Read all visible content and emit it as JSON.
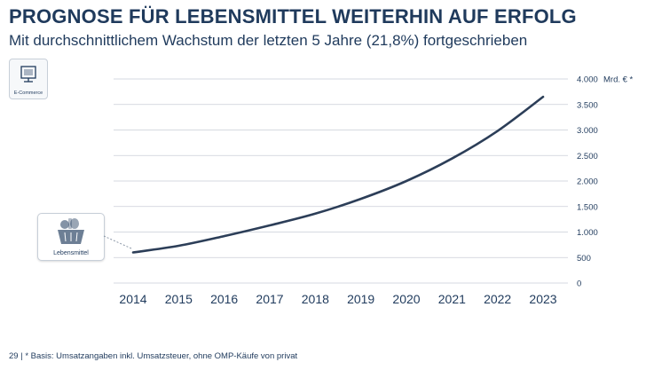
{
  "header": {
    "title": "PROGNOSE FÜR LEBENSMITTEL WEITERHIN AUF ERFOLG",
    "subtitle": "Mit durchschnittlichem Wachstum der letzten 5 Jahre (21,8%) fortgeschrieben"
  },
  "badges": {
    "ecommerce_label": "E-Commerce",
    "lebensmittel_label": "Lebensmittel"
  },
  "footer": {
    "page_number": "29",
    "separator": "|",
    "note": "* Basis: Umsatzangaben inkl. Umsatzsteuer, ohne OMP-Käufe von privat"
  },
  "colors": {
    "line": "#2c3e58",
    "grid": "#c9ced6",
    "text": "#1f3a5c"
  },
  "chart_data": {
    "type": "line",
    "title": "",
    "xlabel": "",
    "ylabel": "Mrd. € *",
    "categories": [
      "2014",
      "2015",
      "2016",
      "2017",
      "2018",
      "2019",
      "2020",
      "2021",
      "2022",
      "2023"
    ],
    "series": [
      {
        "name": "Lebensmittel",
        "values": [
          600,
          730,
          920,
          1130,
          1360,
          1650,
          2000,
          2440,
          2980,
          3650
        ]
      }
    ],
    "y_ticks": [
      0,
      500,
      1000,
      1500,
      2000,
      2500,
      3000,
      3500,
      4000
    ],
    "y_tick_labels": [
      "0",
      "500",
      "1.000",
      "1.500",
      "2.000",
      "2.500",
      "3.000",
      "3.500",
      "4.000"
    ],
    "ylim": [
      0,
      4000
    ],
    "grid": true
  }
}
